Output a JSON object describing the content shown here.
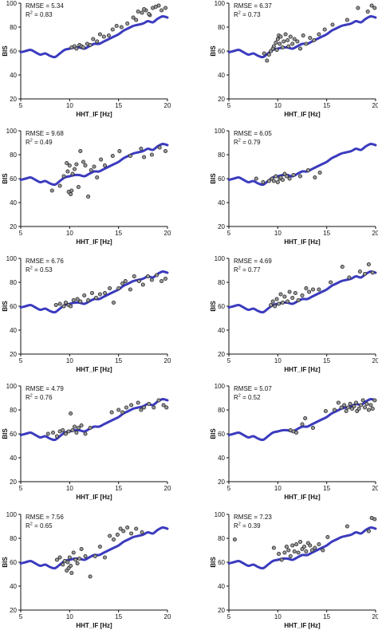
{
  "figure": {
    "layout": "5 rows x 2 columns"
  },
  "style": {
    "curve_color": "#3b3bbf",
    "marker_fill": "#9a9a9a",
    "marker_stroke": "#222222"
  },
  "curve": {
    "x": [
      5,
      5.5,
      6,
      6.5,
      7,
      7.5,
      8,
      8.5,
      9,
      9.5,
      10,
      10.5,
      11,
      11.5,
      12,
      12.5,
      13,
      13.5,
      14,
      14.5,
      15,
      15.5,
      16,
      16.5,
      17,
      17.5,
      18,
      18.5,
      19,
      19.5,
      20
    ],
    "y": [
      59,
      60,
      61,
      59,
      57,
      58,
      56,
      55,
      58,
      61,
      62,
      63,
      63,
      62,
      64,
      66,
      66,
      68,
      70,
      72,
      74,
      77,
      79,
      81,
      82,
      83,
      85,
      84,
      87,
      89,
      88
    ]
  },
  "chart_data": [
    {
      "type": "scatter",
      "panel": "row1-left",
      "annotation": {
        "rmse": "RMSE = 5.34",
        "r2_label": "R",
        "r2_sup": "2",
        "r2_value": " = 0.83"
      },
      "xlabel": "HHT_IF [Hz]",
      "ylabel": "BIS",
      "xlim": [
        5,
        20
      ],
      "ylim": [
        20,
        100
      ],
      "xticks": [
        "5",
        "10",
        "15",
        "20"
      ],
      "yticks": [
        "20",
        "40",
        "60",
        "80",
        "100"
      ],
      "points": {
        "x": [
          10.2,
          10.5,
          10.7,
          11.0,
          11.2,
          11.4,
          11.8,
          12.1,
          12.4,
          12.8,
          13.1,
          13.5,
          14.0,
          14.4,
          14.8,
          15.3,
          15.9,
          16.5,
          17.0,
          17.4,
          17.8,
          18.2,
          18.5,
          18.8,
          19.1,
          19.4,
          19.8,
          16.8,
          17.6,
          18.1
        ],
        "y": [
          63,
          64,
          62,
          65,
          64,
          63,
          66,
          65,
          70,
          68,
          74,
          72,
          73,
          78,
          81,
          80,
          83,
          88,
          93,
          92,
          94,
          90,
          96,
          97,
          98,
          94,
          96,
          86,
          95,
          91
        ]
      }
    },
    {
      "type": "scatter",
      "panel": "row1-right",
      "annotation": {
        "rmse": "RMSE = 6.37",
        "r2_label": "R",
        "r2_sup": "2",
        "r2_value": " = 0.73"
      },
      "xlabel": "HHT_IF [Hz]",
      "ylabel": "BIS",
      "xlim": [
        5,
        20
      ],
      "ylim": [
        20,
        100
      ],
      "xticks": [
        "5",
        "10",
        "15",
        "20"
      ],
      "yticks": [
        "20",
        "40",
        "60",
        "80",
        "100"
      ],
      "points": {
        "x": [
          8.6,
          8.9,
          9.1,
          9.3,
          9.5,
          9.6,
          9.8,
          9.9,
          10.0,
          10.1,
          10.2,
          10.3,
          10.5,
          10.6,
          10.8,
          11.0,
          11.1,
          11.3,
          11.5,
          11.7,
          12.0,
          12.3,
          12.6,
          12.9,
          13.3,
          13.7,
          14.2,
          14.8,
          15.6,
          17.1,
          18.2,
          19.2,
          19.6,
          19.9
        ],
        "y": [
          58,
          52,
          57,
          60,
          62,
          64,
          67,
          61,
          70,
          73,
          66,
          72,
          63,
          68,
          74,
          69,
          64,
          72,
          66,
          70,
          68,
          62,
          73,
          66,
          71,
          69,
          74,
          78,
          82,
          86,
          96,
          93,
          98,
          96
        ]
      }
    },
    {
      "type": "scatter",
      "panel": "row2-left",
      "annotation": {
        "rmse": "RMSE = 9.68",
        "r2_label": "R",
        "r2_sup": "2",
        "r2_value": " = 0.49"
      },
      "xlabel": "HHT_IF [Hz]",
      "ylabel": "BIS",
      "xlim": [
        5,
        20
      ],
      "ylim": [
        20,
        100
      ],
      "xticks": [
        "5",
        "10",
        "15",
        "20"
      ],
      "yticks": [
        "20",
        "40",
        "60",
        "80",
        "100"
      ],
      "points": {
        "x": [
          8.2,
          9.0,
          9.4,
          9.7,
          9.8,
          9.9,
          10.0,
          10.1,
          10.2,
          10.3,
          10.5,
          10.7,
          10.9,
          11.1,
          11.4,
          11.6,
          11.9,
          12.2,
          12.5,
          12.8,
          13.2,
          13.6,
          14.4,
          15.1,
          16.2,
          17.3,
          17.6,
          18.4,
          19.2,
          19.8
        ],
        "y": [
          50,
          54,
          62,
          73,
          66,
          49,
          71,
          47,
          50,
          64,
          68,
          72,
          53,
          83,
          74,
          71,
          45,
          67,
          70,
          61,
          76,
          71,
          79,
          83,
          79,
          85,
          78,
          80,
          86,
          83
        ]
      }
    },
    {
      "type": "scatter",
      "panel": "row2-right",
      "annotation": {
        "rmse": "RMSE = 6.05",
        "r2_label": "R",
        "r2_sup": "2",
        "r2_value": " = 0.79"
      },
      "xlabel": "HHT_IF [Hz]",
      "ylabel": "BIS",
      "xlim": [
        5,
        20
      ],
      "ylim": [
        20,
        100
      ],
      "xticks": [
        "5",
        "10",
        "15",
        "20"
      ],
      "yticks": [
        "20",
        "40",
        "60",
        "80",
        "100"
      ],
      "points": {
        "x": [
          7.8,
          8.5,
          9.1,
          9.4,
          9.6,
          9.8,
          10.0,
          10.2,
          10.3,
          10.5,
          10.7,
          10.9,
          11.2,
          11.6,
          12.3,
          13.1,
          13.8,
          14.3
        ],
        "y": [
          60,
          57,
          58,
          60,
          58,
          62,
          57,
          60,
          61,
          59,
          64,
          62,
          60,
          63,
          62,
          67,
          61,
          65
        ]
      }
    },
    {
      "type": "scatter",
      "panel": "row3-left",
      "annotation": {
        "rmse": "RMSE = 6.76",
        "r2_label": "R",
        "r2_sup": "2",
        "r2_value": " = 0.53"
      },
      "xlabel": "HHT_IF [Hz]",
      "ylabel": "BIS",
      "xlim": [
        5,
        20
      ],
      "ylim": [
        20,
        100
      ],
      "xticks": [
        "5",
        "10",
        "15",
        "20"
      ],
      "yticks": [
        "20",
        "40",
        "60",
        "80",
        "100"
      ],
      "points": {
        "x": [
          8.6,
          9.0,
          9.4,
          9.6,
          9.9,
          10.1,
          10.4,
          10.8,
          11.1,
          11.5,
          11.9,
          12.3,
          12.7,
          13.1,
          13.6,
          14.1,
          14.5,
          15.0,
          15.4,
          15.7,
          16.2,
          16.6,
          17.1,
          17.5,
          18.0,
          18.4,
          18.9,
          19.4,
          19.8
        ],
        "y": [
          61,
          62,
          60,
          63,
          61,
          60,
          65,
          66,
          64,
          69,
          65,
          71,
          67,
          70,
          71,
          75,
          63,
          75,
          79,
          81,
          74,
          85,
          81,
          78,
          85,
          82,
          86,
          81,
          83
        ]
      }
    },
    {
      "type": "scatter",
      "panel": "row3-right",
      "annotation": {
        "rmse": "RMSE = 4.69",
        "r2_label": "R",
        "r2_sup": "2",
        "r2_value": " = 0.77"
      },
      "xlabel": "HHT_IF [Hz]",
      "ylabel": "BIS",
      "xlim": [
        5,
        20
      ],
      "ylim": [
        20,
        100
      ],
      "xticks": [
        "5",
        "10",
        "15",
        "20"
      ],
      "yticks": [
        "20",
        "40",
        "60",
        "80",
        "100"
      ],
      "points": {
        "x": [
          9.3,
          9.5,
          9.7,
          9.9,
          10.1,
          10.3,
          10.5,
          10.7,
          11.0,
          11.2,
          11.5,
          11.8,
          12.1,
          12.5,
          12.9,
          13.2,
          13.6,
          14.2,
          15.4,
          16.6,
          17.3,
          18.4,
          18.9,
          19.3,
          19.7
        ],
        "y": [
          61,
          64,
          60,
          66,
          62,
          70,
          63,
          68,
          64,
          72,
          67,
          71,
          65,
          69,
          75,
          72,
          74,
          74,
          80,
          93,
          84,
          89,
          87,
          95,
          88
        ]
      }
    },
    {
      "type": "scatter",
      "panel": "row4-left",
      "annotation": {
        "rmse": "RMSE = 4.79",
        "r2_label": "R",
        "r2_sup": "2",
        "r2_value": " = 0.76"
      },
      "xlabel": "HHT_IF [Hz]",
      "ylabel": "BIS",
      "xlim": [
        5,
        20
      ],
      "ylim": [
        20,
        100
      ],
      "xticks": [
        "5",
        "10",
        "15",
        "20"
      ],
      "yticks": [
        "20",
        "40",
        "60",
        "80",
        "100"
      ],
      "points": {
        "x": [
          7.8,
          8.3,
          8.7,
          9.0,
          9.3,
          9.6,
          9.9,
          10.1,
          10.3,
          10.5,
          10.7,
          10.9,
          11.2,
          11.6,
          12.1,
          14.3,
          15.0,
          15.4,
          15.8,
          16.3,
          17.0,
          17.3,
          17.6,
          18.1,
          18.6,
          19.1,
          19.6,
          19.9
        ],
        "y": [
          60,
          61,
          58,
          62,
          63,
          60,
          62,
          77,
          63,
          66,
          61,
          65,
          67,
          60,
          65,
          78,
          80,
          78,
          82,
          84,
          86,
          80,
          82,
          85,
          82,
          88,
          84,
          82
        ]
      }
    },
    {
      "type": "scatter",
      "panel": "row4-right",
      "annotation": {
        "rmse": "RMSE = 5.07",
        "r2_label": "R",
        "r2_sup": "2",
        "r2_value": " = 0.52"
      },
      "xlabel": "HHT_IF [Hz]",
      "ylabel": "BIS",
      "xlim": [
        5,
        20
      ],
      "ylim": [
        20,
        100
      ],
      "xticks": [
        "5",
        "10",
        "15",
        "20"
      ],
      "yticks": [
        "20",
        "40",
        "60",
        "80",
        "100"
      ],
      "points": {
        "x": [
          11.3,
          11.6,
          11.9,
          12.5,
          12.8,
          13.6,
          14.9,
          15.8,
          16.2,
          16.5,
          16.8,
          17.0,
          17.2,
          17.4,
          17.6,
          17.8,
          18.0,
          18.1,
          18.3,
          18.5,
          18.7,
          18.9,
          19.1,
          19.3,
          19.5,
          19.7,
          19.9
        ],
        "y": [
          63,
          62,
          61,
          68,
          73,
          65,
          79,
          80,
          86,
          82,
          84,
          79,
          82,
          85,
          81,
          83,
          86,
          79,
          81,
          84,
          88,
          82,
          85,
          80,
          84,
          81,
          88
        ]
      }
    },
    {
      "type": "scatter",
      "panel": "row5-left",
      "annotation": {
        "rmse": "RMSE = 7.56",
        "r2_label": "R",
        "r2_sup": "2",
        "r2_value": " = 0.65"
      },
      "xlabel": "HHT_IF [Hz]",
      "ylabel": "BIS",
      "xlim": [
        5,
        20
      ],
      "ylim": [
        20,
        100
      ],
      "xticks": [
        "5",
        "10",
        "15",
        "20"
      ],
      "yticks": [
        "20",
        "40",
        "60",
        "80",
        "100"
      ],
      "points": {
        "x": [
          8.7,
          9.0,
          9.3,
          9.5,
          9.7,
          9.8,
          9.9,
          10.0,
          10.1,
          10.2,
          10.4,
          10.6,
          10.8,
          11.0,
          11.2,
          11.6,
          12.1,
          12.6,
          13.1,
          13.6,
          14.1,
          14.5,
          14.9,
          15.2,
          15.5,
          15.9,
          16.3,
          16.8,
          17.4
        ],
        "y": [
          62,
          64,
          58,
          61,
          53,
          60,
          55,
          64,
          57,
          51,
          68,
          62,
          59,
          63,
          71,
          65,
          48,
          65,
          73,
          64,
          82,
          79,
          83,
          88,
          86,
          89,
          84,
          88,
          85
        ]
      }
    },
    {
      "type": "scatter",
      "panel": "row5-right",
      "annotation": {
        "rmse": "RMSE = 7.23",
        "r2_label": "R",
        "r2_sup": "2",
        "r2_value": " = 0.39"
      },
      "xlabel": "HHT_IF [Hz]",
      "ylabel": "BIS",
      "xlim": [
        5,
        20
      ],
      "ylim": [
        20,
        100
      ],
      "xticks": [
        "5",
        "10",
        "15",
        "20"
      ],
      "yticks": [
        "20",
        "40",
        "60",
        "80",
        "100"
      ],
      "points": {
        "x": [
          5.6,
          9.6,
          10.1,
          10.4,
          10.7,
          10.9,
          11.1,
          11.3,
          11.5,
          11.7,
          11.9,
          12.1,
          12.3,
          12.5,
          12.7,
          12.9,
          13.1,
          13.3,
          13.5,
          13.8,
          14.2,
          14.6,
          15.1,
          17.1,
          19.3,
          19.6,
          19.9
        ],
        "y": [
          79,
          72,
          67,
          62,
          68,
          73,
          70,
          65,
          74,
          69,
          75,
          68,
          77,
          71,
          73,
          69,
          76,
          74,
          70,
          72,
          75,
          70,
          81,
          90,
          86,
          97,
          96
        ]
      }
    }
  ]
}
